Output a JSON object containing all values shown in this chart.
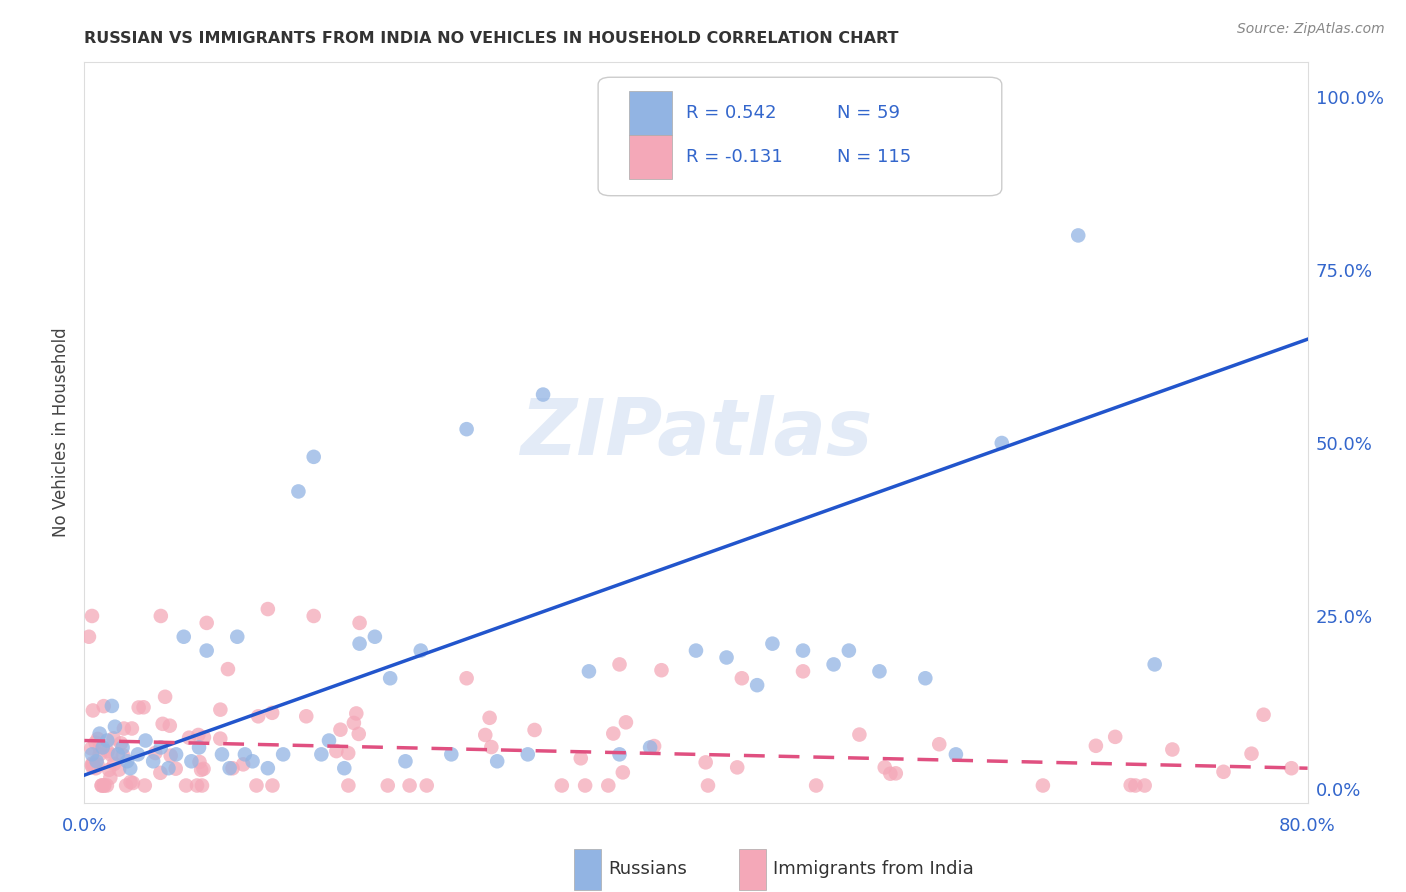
{
  "title": "RUSSIAN VS IMMIGRANTS FROM INDIA NO VEHICLES IN HOUSEHOLD CORRELATION CHART",
  "source": "Source: ZipAtlas.com",
  "ylabel": "No Vehicles in Household",
  "ytick_labels": [
    "0.0%",
    "25.0%",
    "50.0%",
    "75.0%",
    "100.0%"
  ],
  "ytick_values": [
    0,
    25,
    50,
    75,
    100
  ],
  "xlim": [
    0,
    80
  ],
  "ylim": [
    -2,
    105
  ],
  "russian_R": 0.542,
  "russian_N": 59,
  "india_R": -0.131,
  "india_N": 115,
  "russian_color": "#92b4e3",
  "india_color": "#f4a8b8",
  "russian_line_color": "#2255cc",
  "india_line_color": "#e05080",
  "watermark": "ZIPatlas",
  "background_color": "#ffffff",
  "grid_color": "#cccccc"
}
